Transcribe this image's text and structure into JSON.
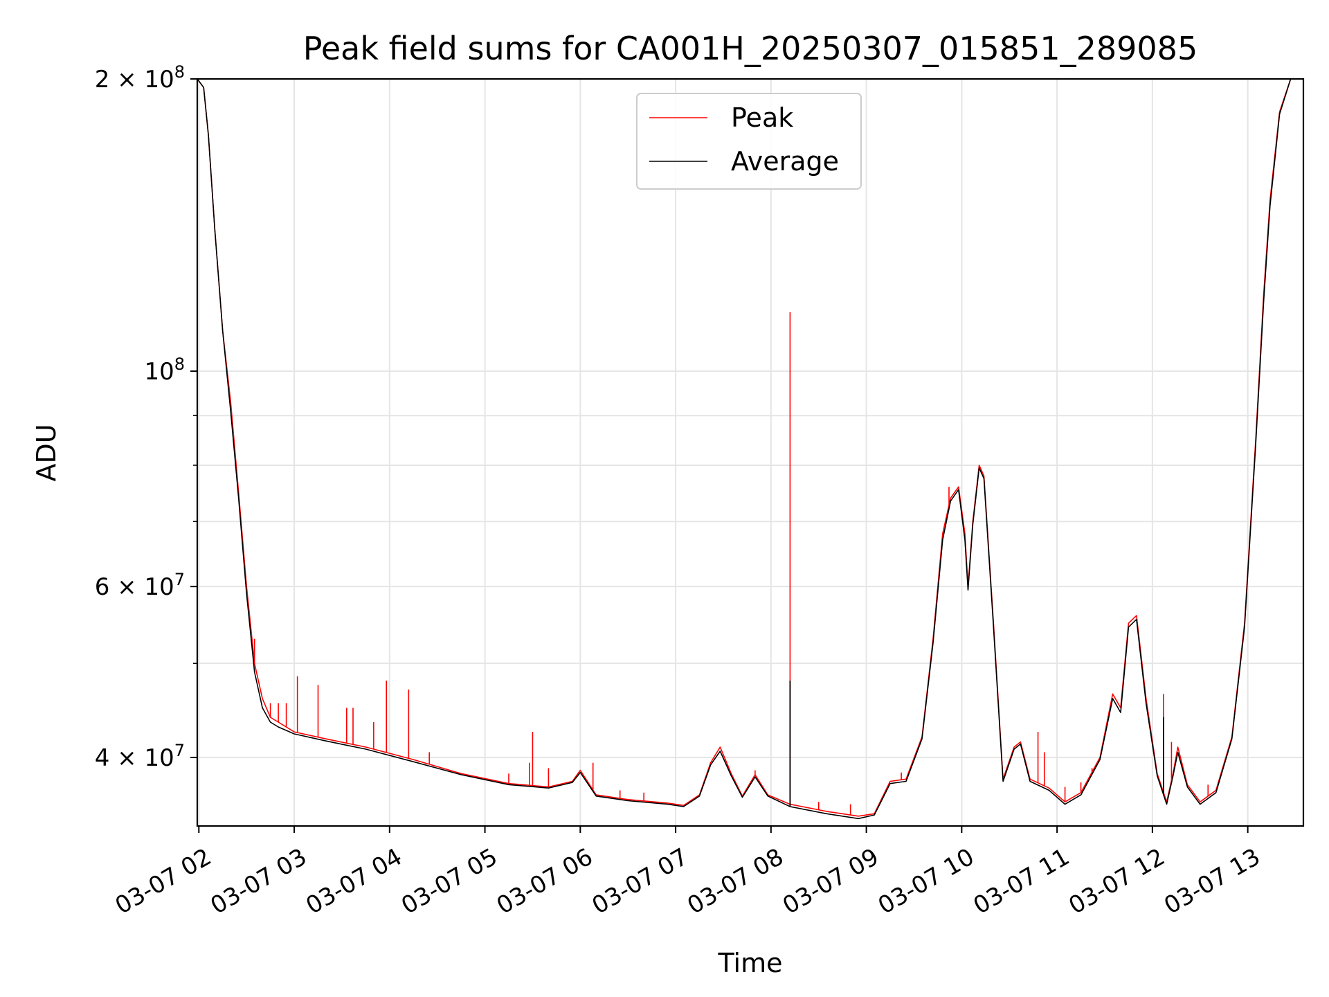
{
  "chart_data": {
    "type": "line",
    "title": "Peak field sums for CA001H_20250307_015851_289085",
    "xlabel": "Time",
    "ylabel": "ADU",
    "y_scale": "log",
    "ylim": [
      34000000,
      200000000
    ],
    "xlim": [
      "2025-03-07 01:59",
      "2025-03-07 13:35"
    ],
    "grid": true,
    "legend_position": "top-center",
    "x_tick_labels": [
      "03-07 02",
      "03-07 03",
      "03-07 04",
      "03-07 05",
      "03-07 06",
      "03-07 07",
      "03-07 08",
      "03-07 09",
      "03-07 10",
      "03-07 11",
      "03-07 12",
      "03-07 13"
    ],
    "x_ticks": [
      "2025-03-07 02:00",
      "2025-03-07 03:00",
      "2025-03-07 04:00",
      "2025-03-07 05:00",
      "2025-03-07 06:00",
      "2025-03-07 07:00",
      "2025-03-07 08:00",
      "2025-03-07 09:00",
      "2025-03-07 10:00",
      "2025-03-07 11:00",
      "2025-03-07 12:00",
      "2025-03-07 13:00"
    ],
    "y_ticks": [
      {
        "value": 40000000,
        "base": "4 × 10",
        "exp": "7"
      },
      {
        "value": 60000000,
        "base": "6 × 10",
        "exp": "7"
      },
      {
        "value": 100000000,
        "base": "10",
        "exp": "8"
      },
      {
        "value": 200000000,
        "base": "2 × 10",
        "exp": "8"
      }
    ],
    "y_minor_ticks": [
      50000000,
      70000000,
      80000000,
      90000000
    ],
    "series": [
      {
        "name": "Peak",
        "color": "#ff0000",
        "points": [
          [
            "2025-03-07 01:59",
            200000000
          ],
          [
            "2025-03-07 02:03",
            196000000
          ],
          [
            "2025-03-07 02:06",
            175000000
          ],
          [
            "2025-03-07 02:10",
            140000000
          ],
          [
            "2025-03-07 02:15",
            110000000
          ],
          [
            "2025-03-07 02:20",
            93000000
          ],
          [
            "2025-03-07 02:25",
            75000000
          ],
          [
            "2025-03-07 02:30",
            60000000
          ],
          [
            "2025-03-07 02:35",
            50000000
          ],
          [
            "2025-03-07 02:40",
            46000000
          ],
          [
            "2025-03-07 02:45",
            44000000
          ],
          [
            "2025-03-07 02:50",
            43500000
          ],
          [
            "2025-03-07 03:00",
            42500000
          ],
          [
            "2025-03-07 03:20",
            41800000
          ],
          [
            "2025-03-07 03:45",
            41000000
          ],
          [
            "2025-03-07 04:15",
            39800000
          ],
          [
            "2025-03-07 04:45",
            38500000
          ],
          [
            "2025-03-07 05:15",
            37600000
          ],
          [
            "2025-03-07 05:40",
            37300000
          ],
          [
            "2025-03-07 05:55",
            37800000
          ],
          [
            "2025-03-07 06:00",
            38800000
          ],
          [
            "2025-03-07 06:10",
            36600000
          ],
          [
            "2025-03-07 06:30",
            36200000
          ],
          [
            "2025-03-07 06:55",
            35900000
          ],
          [
            "2025-03-07 07:05",
            35700000
          ],
          [
            "2025-03-07 07:15",
            36600000
          ],
          [
            "2025-03-07 07:22",
            39500000
          ],
          [
            "2025-03-07 07:28",
            41000000
          ],
          [
            "2025-03-07 07:35",
            38500000
          ],
          [
            "2025-03-07 07:42",
            36500000
          ],
          [
            "2025-03-07 07:50",
            38400000
          ],
          [
            "2025-03-07 07:58",
            36600000
          ],
          [
            "2025-03-07 08:12",
            35800000
          ],
          [
            "2025-03-07 08:35",
            35200000
          ],
          [
            "2025-03-07 08:55",
            34800000
          ],
          [
            "2025-03-07 09:05",
            35000000
          ],
          [
            "2025-03-07 09:15",
            37800000
          ],
          [
            "2025-03-07 09:25",
            38000000
          ],
          [
            "2025-03-07 09:35",
            42000000
          ],
          [
            "2025-03-07 09:42",
            53000000
          ],
          [
            "2025-03-07 09:48",
            68000000
          ],
          [
            "2025-03-07 09:53",
            74000000
          ],
          [
            "2025-03-07 09:58",
            76000000
          ],
          [
            "2025-03-07 10:02",
            68000000
          ],
          [
            "2025-03-07 10:04",
            60000000
          ],
          [
            "2025-03-07 10:07",
            70000000
          ],
          [
            "2025-03-07 10:11",
            80000000
          ],
          [
            "2025-03-07 10:14",
            78000000
          ],
          [
            "2025-03-07 10:20",
            55000000
          ],
          [
            "2025-03-07 10:26",
            38000000
          ],
          [
            "2025-03-07 10:33",
            41000000
          ],
          [
            "2025-03-07 10:37",
            41500000
          ],
          [
            "2025-03-07 10:43",
            38000000
          ],
          [
            "2025-03-07 10:55",
            37200000
          ],
          [
            "2025-03-07 11:05",
            36000000
          ],
          [
            "2025-03-07 11:15",
            36800000
          ],
          [
            "2025-03-07 11:27",
            40000000
          ],
          [
            "2025-03-07 11:35",
            46500000
          ],
          [
            "2025-03-07 11:40",
            45000000
          ],
          [
            "2025-03-07 11:45",
            55000000
          ],
          [
            "2025-03-07 11:50",
            56000000
          ],
          [
            "2025-03-07 11:56",
            46000000
          ],
          [
            "2025-03-07 12:03",
            38500000
          ],
          [
            "2025-03-07 12:09",
            36000000
          ],
          [
            "2025-03-07 12:13",
            38500000
          ],
          [
            "2025-03-07 12:16",
            41000000
          ],
          [
            "2025-03-07 12:22",
            37500000
          ],
          [
            "2025-03-07 12:30",
            36000000
          ],
          [
            "2025-03-07 12:40",
            37000000
          ],
          [
            "2025-03-07 12:50",
            42000000
          ],
          [
            "2025-03-07 12:58",
            55000000
          ],
          [
            "2025-03-07 13:05",
            85000000
          ],
          [
            "2025-03-07 13:10",
            120000000
          ],
          [
            "2025-03-07 13:14",
            150000000
          ],
          [
            "2025-03-07 13:20",
            185000000
          ],
          [
            "2025-03-07 13:27",
            200000000
          ],
          [
            "2025-03-07 13:35",
            200000000
          ]
        ]
      },
      {
        "name": "Average",
        "color": "#000000",
        "points": [
          [
            "2025-03-07 01:59",
            200000000
          ],
          [
            "2025-03-07 02:03",
            196000000
          ],
          [
            "2025-03-07 02:06",
            175000000
          ],
          [
            "2025-03-07 02:10",
            140000000
          ],
          [
            "2025-03-07 02:15",
            110000000
          ],
          [
            "2025-03-07 02:20",
            91000000
          ],
          [
            "2025-03-07 02:25",
            74000000
          ],
          [
            "2025-03-07 02:30",
            59000000
          ],
          [
            "2025-03-07 02:35",
            49000000
          ],
          [
            "2025-03-07 02:40",
            45000000
          ],
          [
            "2025-03-07 02:45",
            43500000
          ],
          [
            "2025-03-07 02:50",
            43000000
          ],
          [
            "2025-03-07 03:00",
            42300000
          ],
          [
            "2025-03-07 03:20",
            41600000
          ],
          [
            "2025-03-07 03:45",
            40800000
          ],
          [
            "2025-03-07 04:15",
            39600000
          ],
          [
            "2025-03-07 04:45",
            38400000
          ],
          [
            "2025-03-07 05:15",
            37500000
          ],
          [
            "2025-03-07 05:40",
            37200000
          ],
          [
            "2025-03-07 05:55",
            37700000
          ],
          [
            "2025-03-07 06:00",
            38600000
          ],
          [
            "2025-03-07 06:10",
            36500000
          ],
          [
            "2025-03-07 06:30",
            36100000
          ],
          [
            "2025-03-07 06:55",
            35800000
          ],
          [
            "2025-03-07 07:05",
            35600000
          ],
          [
            "2025-03-07 07:15",
            36500000
          ],
          [
            "2025-03-07 07:22",
            39300000
          ],
          [
            "2025-03-07 07:28",
            40600000
          ],
          [
            "2025-03-07 07:35",
            38300000
          ],
          [
            "2025-03-07 07:42",
            36400000
          ],
          [
            "2025-03-07 07:50",
            38200000
          ],
          [
            "2025-03-07 07:58",
            36500000
          ],
          [
            "2025-03-07 08:12",
            35600000
          ],
          [
            "2025-03-07 08:35",
            35000000
          ],
          [
            "2025-03-07 08:55",
            34600000
          ],
          [
            "2025-03-07 09:05",
            34900000
          ],
          [
            "2025-03-07 09:15",
            37600000
          ],
          [
            "2025-03-07 09:25",
            37800000
          ],
          [
            "2025-03-07 09:35",
            41800000
          ],
          [
            "2025-03-07 09:42",
            52500000
          ],
          [
            "2025-03-07 09:48",
            67000000
          ],
          [
            "2025-03-07 09:53",
            73500000
          ],
          [
            "2025-03-07 09:58",
            75500000
          ],
          [
            "2025-03-07 10:02",
            67000000
          ],
          [
            "2025-03-07 10:04",
            59500000
          ],
          [
            "2025-03-07 10:07",
            69500000
          ],
          [
            "2025-03-07 10:11",
            79500000
          ],
          [
            "2025-03-07 10:14",
            77500000
          ],
          [
            "2025-03-07 10:20",
            54500000
          ],
          [
            "2025-03-07 10:26",
            37800000
          ],
          [
            "2025-03-07 10:33",
            40800000
          ],
          [
            "2025-03-07 10:37",
            41300000
          ],
          [
            "2025-03-07 10:43",
            37800000
          ],
          [
            "2025-03-07 10:55",
            37000000
          ],
          [
            "2025-03-07 11:05",
            35800000
          ],
          [
            "2025-03-07 11:15",
            36600000
          ],
          [
            "2025-03-07 11:27",
            39800000
          ],
          [
            "2025-03-07 11:35",
            46000000
          ],
          [
            "2025-03-07 11:40",
            44500000
          ],
          [
            "2025-03-07 11:45",
            54500000
          ],
          [
            "2025-03-07 11:50",
            55500000
          ],
          [
            "2025-03-07 11:56",
            45500000
          ],
          [
            "2025-03-07 12:03",
            38300000
          ],
          [
            "2025-03-07 12:09",
            35800000
          ],
          [
            "2025-03-07 12:13",
            38300000
          ],
          [
            "2025-03-07 12:16",
            40500000
          ],
          [
            "2025-03-07 12:22",
            37300000
          ],
          [
            "2025-03-07 12:30",
            35800000
          ],
          [
            "2025-03-07 12:40",
            36800000
          ],
          [
            "2025-03-07 12:50",
            41800000
          ],
          [
            "2025-03-07 12:58",
            54500000
          ],
          [
            "2025-03-07 13:05",
            84000000
          ],
          [
            "2025-03-07 13:10",
            118000000
          ],
          [
            "2025-03-07 13:14",
            148000000
          ],
          [
            "2025-03-07 13:20",
            184000000
          ],
          [
            "2025-03-07 13:27",
            200000000
          ],
          [
            "2025-03-07 13:35",
            200000000
          ]
        ]
      }
    ],
    "peak_spikes": [
      [
        "2025-03-07 02:35",
        53000000
      ],
      [
        "2025-03-07 02:45",
        45500000
      ],
      [
        "2025-03-07 02:50",
        45500000
      ],
      [
        "2025-03-07 02:55",
        45500000
      ],
      [
        "2025-03-07 03:02",
        48500000
      ],
      [
        "2025-03-07 03:15",
        47500000
      ],
      [
        "2025-03-07 03:33",
        45000000
      ],
      [
        "2025-03-07 03:37",
        45000000
      ],
      [
        "2025-03-07 03:50",
        43500000
      ],
      [
        "2025-03-07 03:58",
        48000000
      ],
      [
        "2025-03-07 04:12",
        47000000
      ],
      [
        "2025-03-07 04:25",
        40500000
      ],
      [
        "2025-03-07 05:15",
        38500000
      ],
      [
        "2025-03-07 05:28",
        39500000
      ],
      [
        "2025-03-07 05:30",
        42500000
      ],
      [
        "2025-03-07 05:40",
        39000000
      ],
      [
        "2025-03-07 06:08",
        39500000
      ],
      [
        "2025-03-07 06:25",
        37000000
      ],
      [
        "2025-03-07 06:40",
        36800000
      ],
      [
        "2025-03-07 07:50",
        38800000
      ],
      [
        "2025-03-07 08:12",
        115000000
      ],
      [
        "2025-03-07 08:30",
        36000000
      ],
      [
        "2025-03-07 08:50",
        35800000
      ],
      [
        "2025-03-07 09:22",
        38600000
      ],
      [
        "2025-03-07 09:52",
        76000000
      ],
      [
        "2025-03-07 10:48",
        42500000
      ],
      [
        "2025-03-07 10:52",
        40500000
      ],
      [
        "2025-03-07 11:05",
        37300000
      ],
      [
        "2025-03-07 11:15",
        37700000
      ],
      [
        "2025-03-07 11:22",
        39000000
      ],
      [
        "2025-03-07 12:07",
        46500000
      ],
      [
        "2025-03-07 12:12",
        41500000
      ],
      [
        "2025-03-07 12:35",
        37500000
      ]
    ],
    "average_spikes": [
      [
        "2025-03-07 08:12",
        48000000
      ],
      [
        "2025-03-07 12:07",
        44000000
      ]
    ]
  }
}
